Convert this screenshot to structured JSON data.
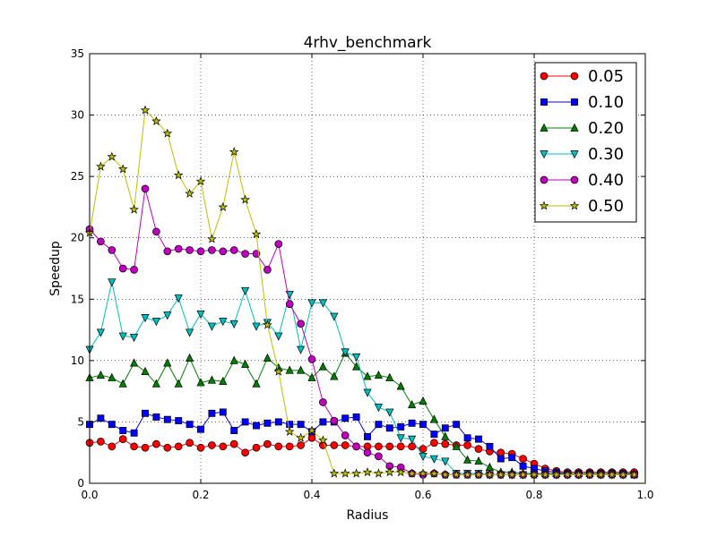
{
  "chart_data": {
    "type": "line",
    "title": "4rhv_benchmark",
    "xlabel": "Radius",
    "ylabel": "Speedup",
    "xlim": [
      0.0,
      1.0
    ],
    "ylim": [
      0,
      35
    ],
    "xticks": [
      0.0,
      0.2,
      0.4,
      0.6,
      0.8,
      1.0
    ],
    "xtick_labels": [
      "0.0",
      "0.2",
      "0.4",
      "0.6",
      "0.8",
      "1.0"
    ],
    "yticks": [
      0,
      5,
      10,
      15,
      20,
      25,
      30,
      35
    ],
    "ytick_labels": [
      "0",
      "5",
      "10",
      "15",
      "20",
      "25",
      "30",
      "35"
    ],
    "grid": true,
    "legend_position": "top-right",
    "x": [
      0.0,
      0.02,
      0.04,
      0.06,
      0.08,
      0.1,
      0.12,
      0.14,
      0.16,
      0.18,
      0.2,
      0.22,
      0.24,
      0.26,
      0.28,
      0.3,
      0.32,
      0.34,
      0.36,
      0.38,
      0.4,
      0.42,
      0.44,
      0.46,
      0.48,
      0.5,
      0.52,
      0.54,
      0.56,
      0.58,
      0.6,
      0.62,
      0.64,
      0.66,
      0.68,
      0.7,
      0.72,
      0.74,
      0.76,
      0.78,
      0.8,
      0.82,
      0.84,
      0.86,
      0.88,
      0.9,
      0.92,
      0.94,
      0.96,
      0.98
    ],
    "series": [
      {
        "name": "0.05",
        "color": "#ff0000",
        "marker": "circle",
        "values": [
          3.3,
          3.4,
          3.0,
          3.6,
          3.0,
          2.9,
          3.2,
          2.9,
          3.0,
          3.3,
          2.9,
          3.1,
          3.0,
          3.2,
          2.5,
          2.9,
          3.2,
          3.0,
          3.0,
          3.1,
          3.7,
          3.1,
          3.1,
          3.1,
          3.0,
          3.0,
          3.0,
          3.0,
          3.0,
          3.0,
          2.8,
          3.3,
          3.2,
          3.1,
          3.1,
          2.8,
          2.6,
          2.5,
          2.4,
          2.0,
          1.6,
          1.2,
          1.0,
          0.9,
          0.9,
          0.9,
          0.9,
          0.9,
          0.9,
          0.9
        ]
      },
      {
        "name": "0.10",
        "color": "#0000ff",
        "marker": "square",
        "values": [
          4.8,
          5.3,
          4.8,
          4.3,
          4.1,
          5.7,
          5.4,
          5.2,
          5.1,
          4.8,
          4.4,
          5.7,
          5.8,
          4.3,
          5.0,
          4.7,
          4.9,
          5.0,
          4.8,
          4.8,
          4.2,
          5.0,
          5.0,
          5.3,
          5.4,
          3.8,
          4.8,
          4.5,
          4.6,
          4.9,
          4.8,
          4.0,
          4.5,
          4.8,
          3.7,
          3.6,
          3.0,
          2.0,
          2.1,
          1.4,
          1.2,
          1.0,
          0.9,
          0.8,
          0.8,
          0.8,
          0.8,
          0.8,
          0.8,
          0.7
        ]
      },
      {
        "name": "0.20",
        "color": "#008000",
        "marker": "triangle-up",
        "values": [
          8.6,
          8.8,
          8.6,
          8.1,
          9.8,
          9.1,
          8.1,
          9.8,
          8.1,
          10.2,
          8.2,
          8.4,
          8.3,
          10.0,
          9.7,
          8.1,
          10.2,
          9.4,
          9.2,
          9.2,
          8.6,
          9.5,
          8.7,
          10.6,
          9.5,
          8.7,
          8.8,
          8.6,
          7.9,
          6.4,
          6.7,
          5.2,
          3.8,
          3.0,
          1.9,
          1.8,
          1.3,
          0.9,
          0.9,
          0.8,
          0.8,
          0.8,
          0.8,
          0.8,
          0.8,
          0.8,
          0.8,
          0.8,
          0.8,
          0.8
        ]
      },
      {
        "name": "0.30",
        "color": "#00bfbf",
        "marker": "triangle-down",
        "values": [
          10.9,
          12.3,
          16.4,
          12.0,
          11.9,
          13.5,
          13.2,
          13.7,
          15.1,
          12.3,
          13.8,
          12.8,
          13.2,
          13.0,
          15.7,
          12.8,
          13.1,
          12.0,
          15.4,
          10.9,
          14.7,
          14.7,
          13.6,
          10.7,
          10.3,
          7.4,
          6.2,
          5.8,
          3.7,
          3.6,
          2.2,
          2.0,
          1.8,
          0.8,
          0.8,
          0.8,
          0.7,
          0.7,
          0.7,
          0.7,
          0.7,
          0.7,
          0.7,
          0.7,
          0.7,
          0.7,
          0.7,
          0.7,
          0.7,
          0.7
        ]
      },
      {
        "name": "0.40",
        "color": "#bf00bf",
        "marker": "circle",
        "values": [
          20.7,
          19.7,
          19.0,
          17.5,
          17.4,
          24.0,
          20.5,
          18.9,
          19.1,
          19.0,
          18.9,
          19.0,
          18.9,
          19.0,
          18.7,
          18.7,
          17.4,
          19.5,
          14.6,
          13.0,
          10.1,
          6.6,
          5.1,
          3.9,
          3.0,
          2.5,
          2.2,
          1.4,
          1.3,
          0.8,
          0.7,
          0.8,
          0.7,
          0.7,
          0.7,
          0.7,
          0.7,
          0.7,
          0.7,
          0.7,
          0.7,
          0.7,
          0.7,
          0.7,
          0.7,
          0.7,
          0.7,
          0.7,
          0.7,
          0.7
        ]
      },
      {
        "name": "0.50",
        "color": "#bfbf00",
        "marker": "star",
        "values": [
          20.4,
          25.8,
          26.6,
          25.6,
          22.3,
          30.4,
          29.5,
          28.5,
          25.1,
          23.6,
          24.6,
          19.9,
          22.5,
          27.0,
          23.1,
          20.3,
          12.9,
          9.1,
          4.2,
          3.7,
          4.3,
          3.5,
          0.8,
          0.8,
          0.8,
          0.9,
          0.8,
          0.9,
          0.9,
          0.8,
          0.8,
          0.8,
          0.7,
          0.7,
          0.7,
          0.7,
          0.7,
          0.7,
          0.7,
          0.7,
          0.7,
          0.7,
          0.7,
          0.7,
          0.7,
          0.7,
          0.7,
          0.7,
          0.7,
          0.7
        ]
      }
    ]
  }
}
